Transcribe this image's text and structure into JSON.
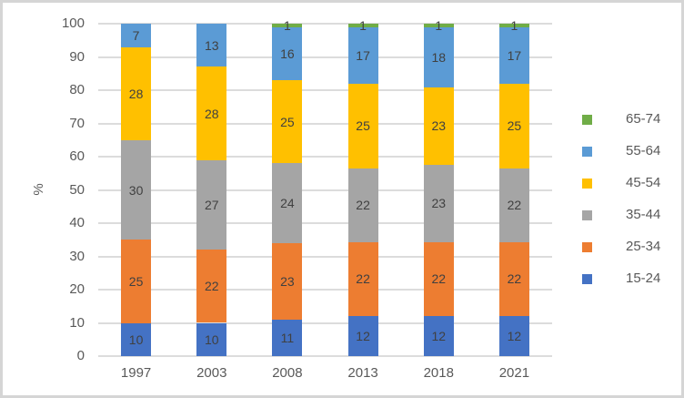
{
  "chart_data": {
    "type": "bar",
    "stacked": true,
    "title": "",
    "xlabel": "",
    "ylabel": "%",
    "ylim": [
      0,
      100
    ],
    "yticks": [
      0,
      10,
      20,
      30,
      40,
      50,
      60,
      70,
      80,
      90,
      100
    ],
    "grid": true,
    "legend_position": "right",
    "categories": [
      "1997",
      "2003",
      "2008",
      "2013",
      "2018",
      "2021"
    ],
    "series": [
      {
        "name": "15-24",
        "color": "#4472C4",
        "values": [
          10,
          10,
          11,
          12,
          12,
          12
        ]
      },
      {
        "name": "25-34",
        "color": "#ED7D31",
        "values": [
          25,
          22,
          23,
          22,
          22,
          22
        ]
      },
      {
        "name": "35-44",
        "color": "#A5A5A5",
        "values": [
          30,
          27,
          24,
          22,
          23,
          22
        ]
      },
      {
        "name": "45-54",
        "color": "#FFC000",
        "values": [
          28,
          28,
          25,
          25,
          23,
          25
        ]
      },
      {
        "name": "55-64",
        "color": "#5B9BD5",
        "values": [
          7,
          13,
          16,
          17,
          18,
          17
        ]
      },
      {
        "name": "65-74",
        "color": "#70AD47",
        "values": [
          0,
          0,
          1,
          1,
          1,
          1
        ]
      }
    ],
    "legend_order": [
      "65-74",
      "55-64",
      "45-54",
      "35-44",
      "25-34",
      "15-24"
    ],
    "style": {
      "gridline_color": "#DCDCDC",
      "tick_label_color": "#595959",
      "data_label_color": "#404040",
      "legend_text_color": "#595959",
      "border_color": "#D5D5D5",
      "background": "#FFFFFF"
    }
  }
}
